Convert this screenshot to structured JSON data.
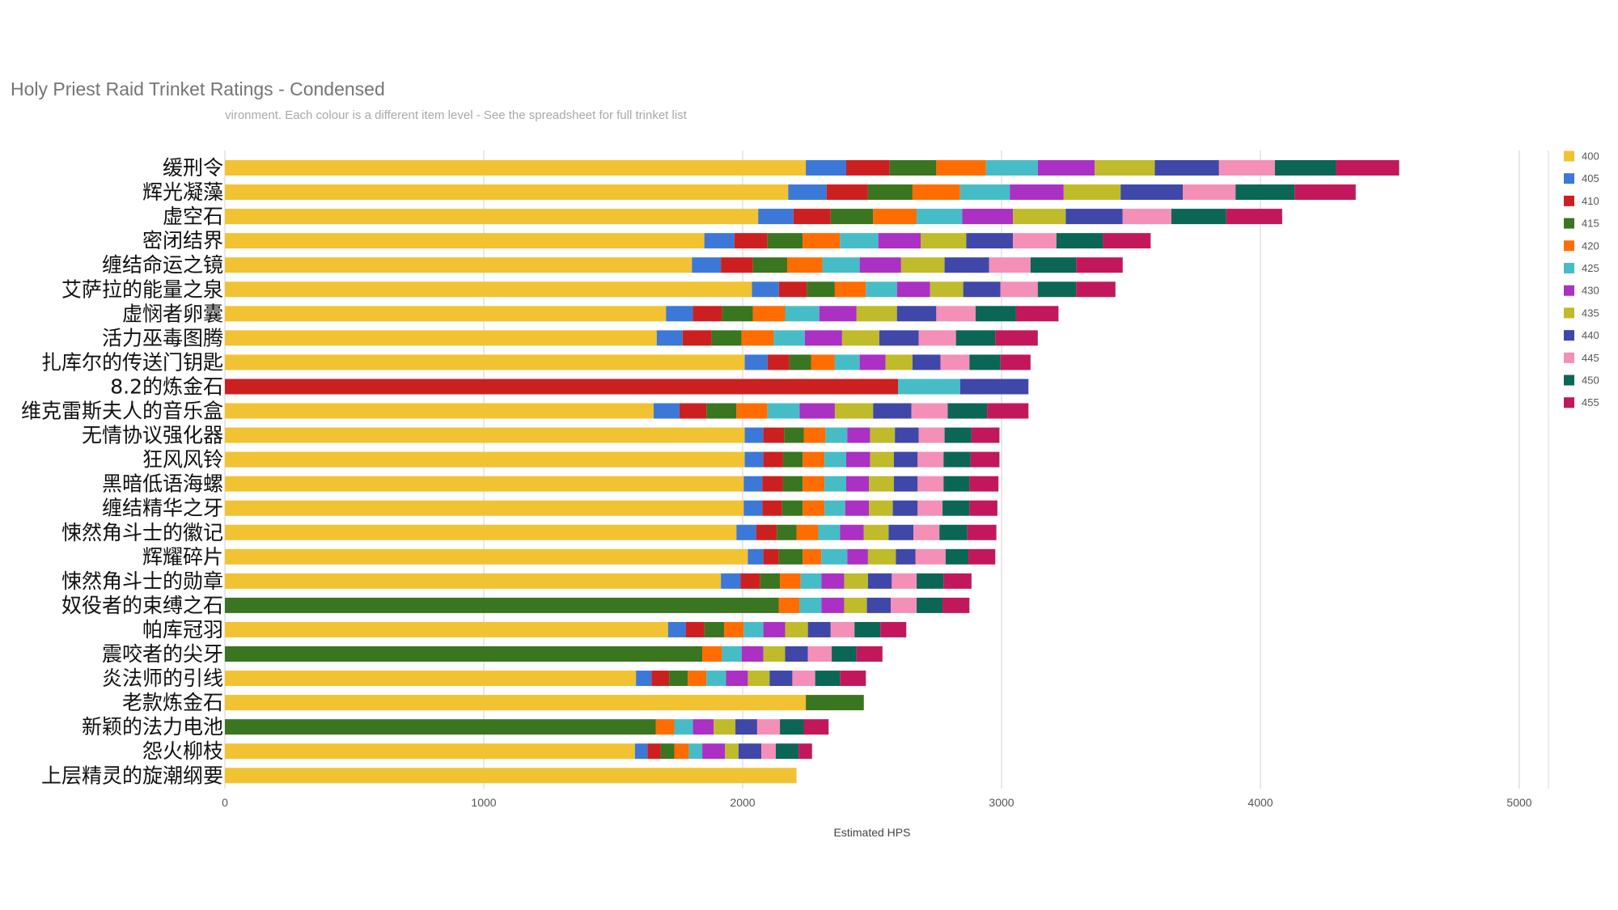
{
  "chart_data": {
    "type": "bar",
    "orientation": "horizontal",
    "stacked": true,
    "title": "Holy Priest Raid Trinket Ratings - Condensed",
    "subtitle": "vironment. Each colour is a different item level - See the spreadsheet for full trinket list",
    "xlabel": "Estimated HPS",
    "xlim": [
      0,
      5000
    ],
    "xticks": [
      0,
      1000,
      2000,
      3000,
      4000,
      5000
    ],
    "grid": true,
    "legend": "right",
    "categories": [
      "缓刑令",
      "辉光凝藻",
      "虚空石",
      "密闭结界",
      "缠结命运之镜",
      "艾萨拉的能量之泉",
      "虚悯者卵囊",
      "活力巫毒图腾",
      "扎库尔的传送门钥匙",
      "8.2的炼金石",
      "维克雷斯夫人的音乐盒",
      "无情协议强化器",
      "狂风风铃",
      "黑暗低语海螺",
      "缠结精华之牙",
      "悚然角斗士的徽记",
      "辉耀碎片",
      "悚然角斗士的勋章",
      "奴役者的束缚之石",
      "帕库冠羽",
      "震咬者的尖牙",
      "炎法师的引线",
      "老款炼金石",
      "新颖的法力电池",
      "怨火柳枝",
      "上层精灵的旋潮纲要"
    ],
    "series": [
      {
        "name": "400",
        "color": "#f1c232",
        "values": [
          2244,
          2176,
          2060,
          1852,
          1804,
          2036,
          1704,
          1668,
          2008,
          null,
          1656,
          2008,
          2008,
          2004,
          2004,
          1976,
          2020,
          1916,
          null,
          1712,
          null,
          1588,
          2244,
          null,
          1584,
          2208
        ]
      },
      {
        "name": "405",
        "color": "#3c78d8",
        "values": [
          156,
          148,
          136,
          116,
          112,
          104,
          104,
          100,
          88,
          null,
          100,
          72,
          72,
          72,
          72,
          76,
          60,
          76,
          null,
          68,
          null,
          60,
          null,
          null,
          48,
          null
        ]
      },
      {
        "name": "410",
        "color": "#cc2020",
        "values": [
          168,
          160,
          144,
          128,
          124,
          108,
          112,
          112,
          84,
          2600,
          104,
          80,
          76,
          80,
          76,
          80,
          60,
          76,
          null,
          72,
          null,
          68,
          null,
          null,
          52,
          null
        ]
      },
      {
        "name": "415",
        "color": "#3a7520",
        "values": [
          180,
          172,
          164,
          136,
          132,
          108,
          120,
          116,
          84,
          null,
          116,
          76,
          76,
          76,
          80,
          76,
          92,
          76,
          2140,
          76,
          1844,
          72,
          224,
          1664,
          52,
          null
        ]
      },
      {
        "name": "420",
        "color": "#ff6d01",
        "values": [
          192,
          184,
          168,
          144,
          136,
          120,
          124,
          124,
          92,
          null,
          120,
          84,
          84,
          84,
          84,
          84,
          72,
          80,
          80,
          76,
          76,
          72,
          null,
          72,
          56,
          null
        ]
      },
      {
        "name": "425",
        "color": "#46bdc6",
        "values": [
          200,
          192,
          176,
          148,
          144,
          120,
          132,
          120,
          96,
          240,
          124,
          84,
          84,
          84,
          80,
          84,
          100,
          80,
          84,
          76,
          76,
          76,
          null,
          72,
          52,
          null
        ]
      },
      {
        "name": "430",
        "color": "#ab30c4",
        "values": [
          220,
          208,
          196,
          164,
          160,
          128,
          144,
          144,
          100,
          null,
          136,
          88,
          92,
          88,
          92,
          92,
          80,
          88,
          88,
          84,
          84,
          84,
          null,
          80,
          88,
          null
        ]
      },
      {
        "name": "435",
        "color": "#bfbb2b",
        "values": [
          232,
          220,
          204,
          176,
          168,
          128,
          156,
          144,
          104,
          null,
          148,
          96,
          92,
          96,
          92,
          96,
          108,
          92,
          88,
          88,
          84,
          84,
          null,
          84,
          52,
          null
        ]
      },
      {
        "name": "440",
        "color": "#3f48a8",
        "values": [
          248,
          240,
          220,
          180,
          172,
          144,
          152,
          152,
          108,
          264,
          148,
          92,
          92,
          92,
          96,
          96,
          76,
          92,
          92,
          88,
          88,
          88,
          null,
          84,
          88,
          null
        ]
      },
      {
        "name": "445",
        "color": "#f48fb7",
        "values": [
          216,
          204,
          188,
          168,
          160,
          144,
          152,
          144,
          112,
          null,
          140,
          100,
          100,
          100,
          96,
          100,
          116,
          96,
          100,
          92,
          92,
          88,
          null,
          88,
          56,
          null
        ]
      },
      {
        "name": "450",
        "color": "#0b6655",
        "values": [
          236,
          228,
          212,
          180,
          176,
          148,
          156,
          152,
          120,
          null,
          152,
          104,
          104,
          100,
          104,
          108,
          88,
          104,
          100,
          100,
          96,
          96,
          null,
          92,
          88,
          null
        ]
      },
      {
        "name": "455",
        "color": "#c2185b",
        "values": [
          244,
          236,
          216,
          184,
          180,
          152,
          164,
          164,
          116,
          null,
          160,
          108,
          112,
          112,
          108,
          112,
          104,
          108,
          104,
          100,
          100,
          100,
          null,
          96,
          52,
          null
        ]
      }
    ]
  }
}
